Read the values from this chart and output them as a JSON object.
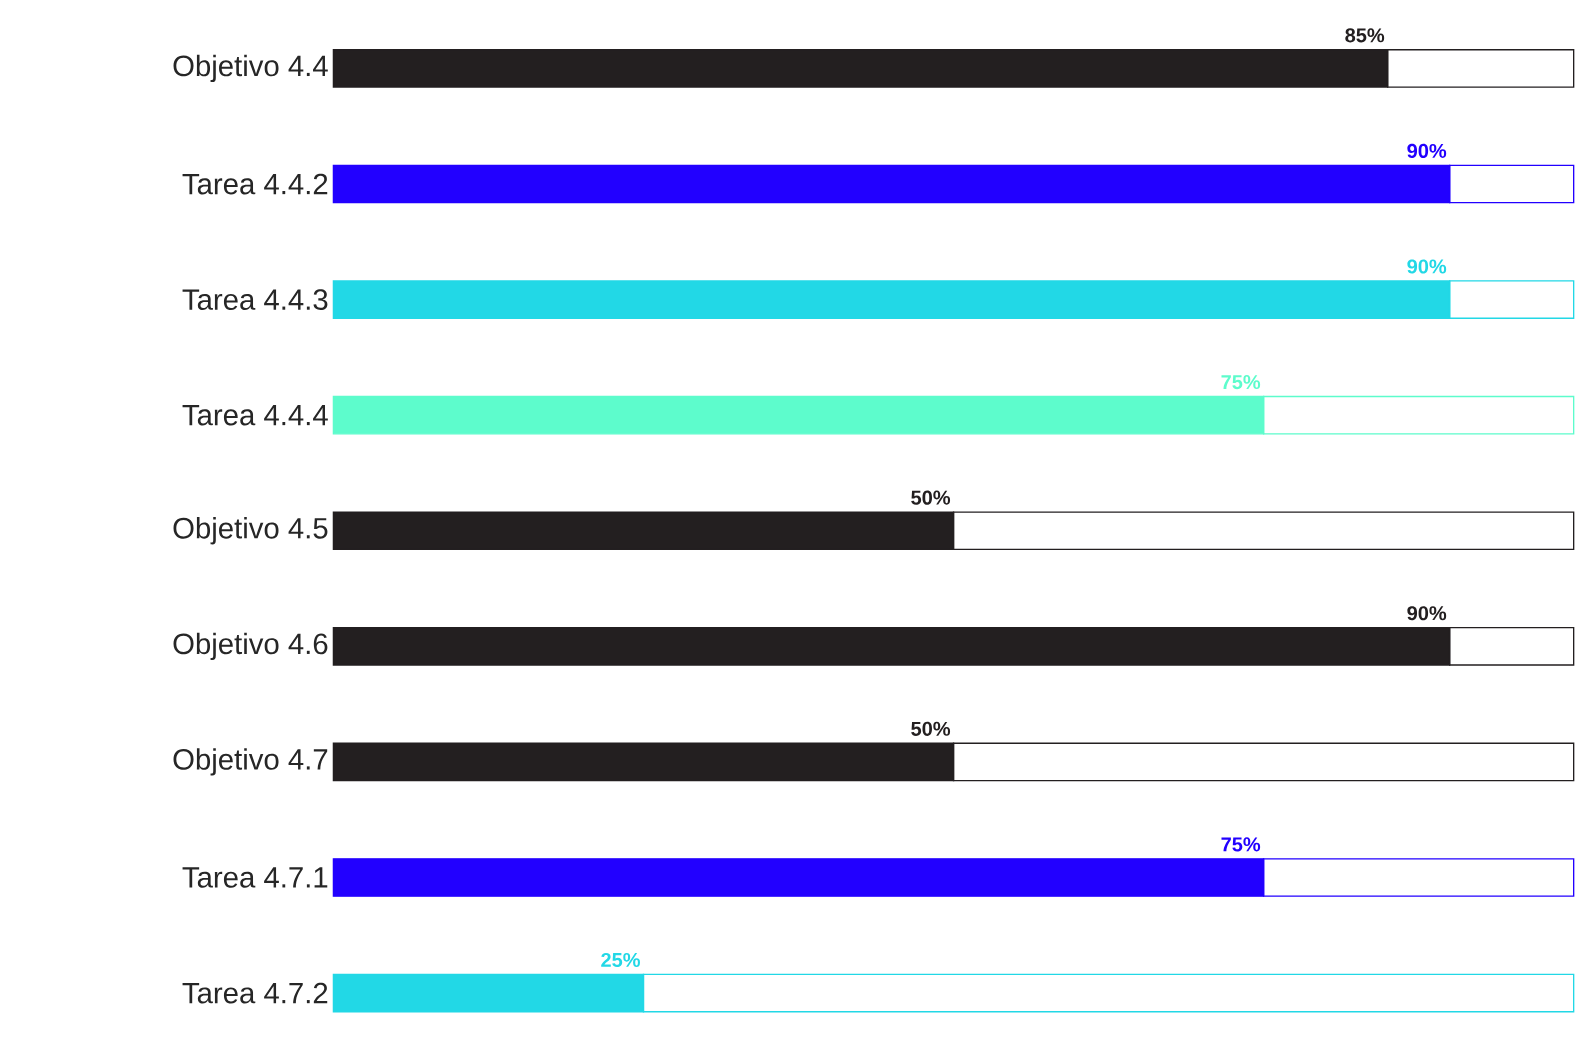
{
  "chart_data": {
    "type": "bar",
    "orientation": "horizontal",
    "stacked": true,
    "categories": [
      "Objetivo 4.4",
      "Tarea 4.4.2",
      "Tarea 4.4.3",
      "Tarea 4.4.4",
      "Objetivo 4.5",
      "Objetivo 4.6",
      "Objetivo 4.7",
      "Tarea 4.7.1",
      "Tarea 4.7.2"
    ],
    "series": [
      {
        "colors": [
          "#231f20",
          "#2200ff",
          "#22d8e6",
          "#5dfccc",
          "#231f20",
          "#231f20",
          "#231f20",
          "#2200ff",
          "#22d8e6"
        ],
        "values": [
          85,
          90,
          90,
          75,
          50,
          90,
          50,
          75,
          25
        ],
        "value_labels": [
          "85%",
          "90%",
          "90%",
          "75%",
          "50%",
          "90%",
          "50%",
          "75%",
          "25%"
        ]
      },
      {
        "color": "#ffffff",
        "values": [
          15,
          10,
          10,
          25,
          50,
          10,
          50,
          25,
          75
        ]
      }
    ],
    "xlim": [
      0,
      100
    ],
    "tick_labels": "y"
  }
}
